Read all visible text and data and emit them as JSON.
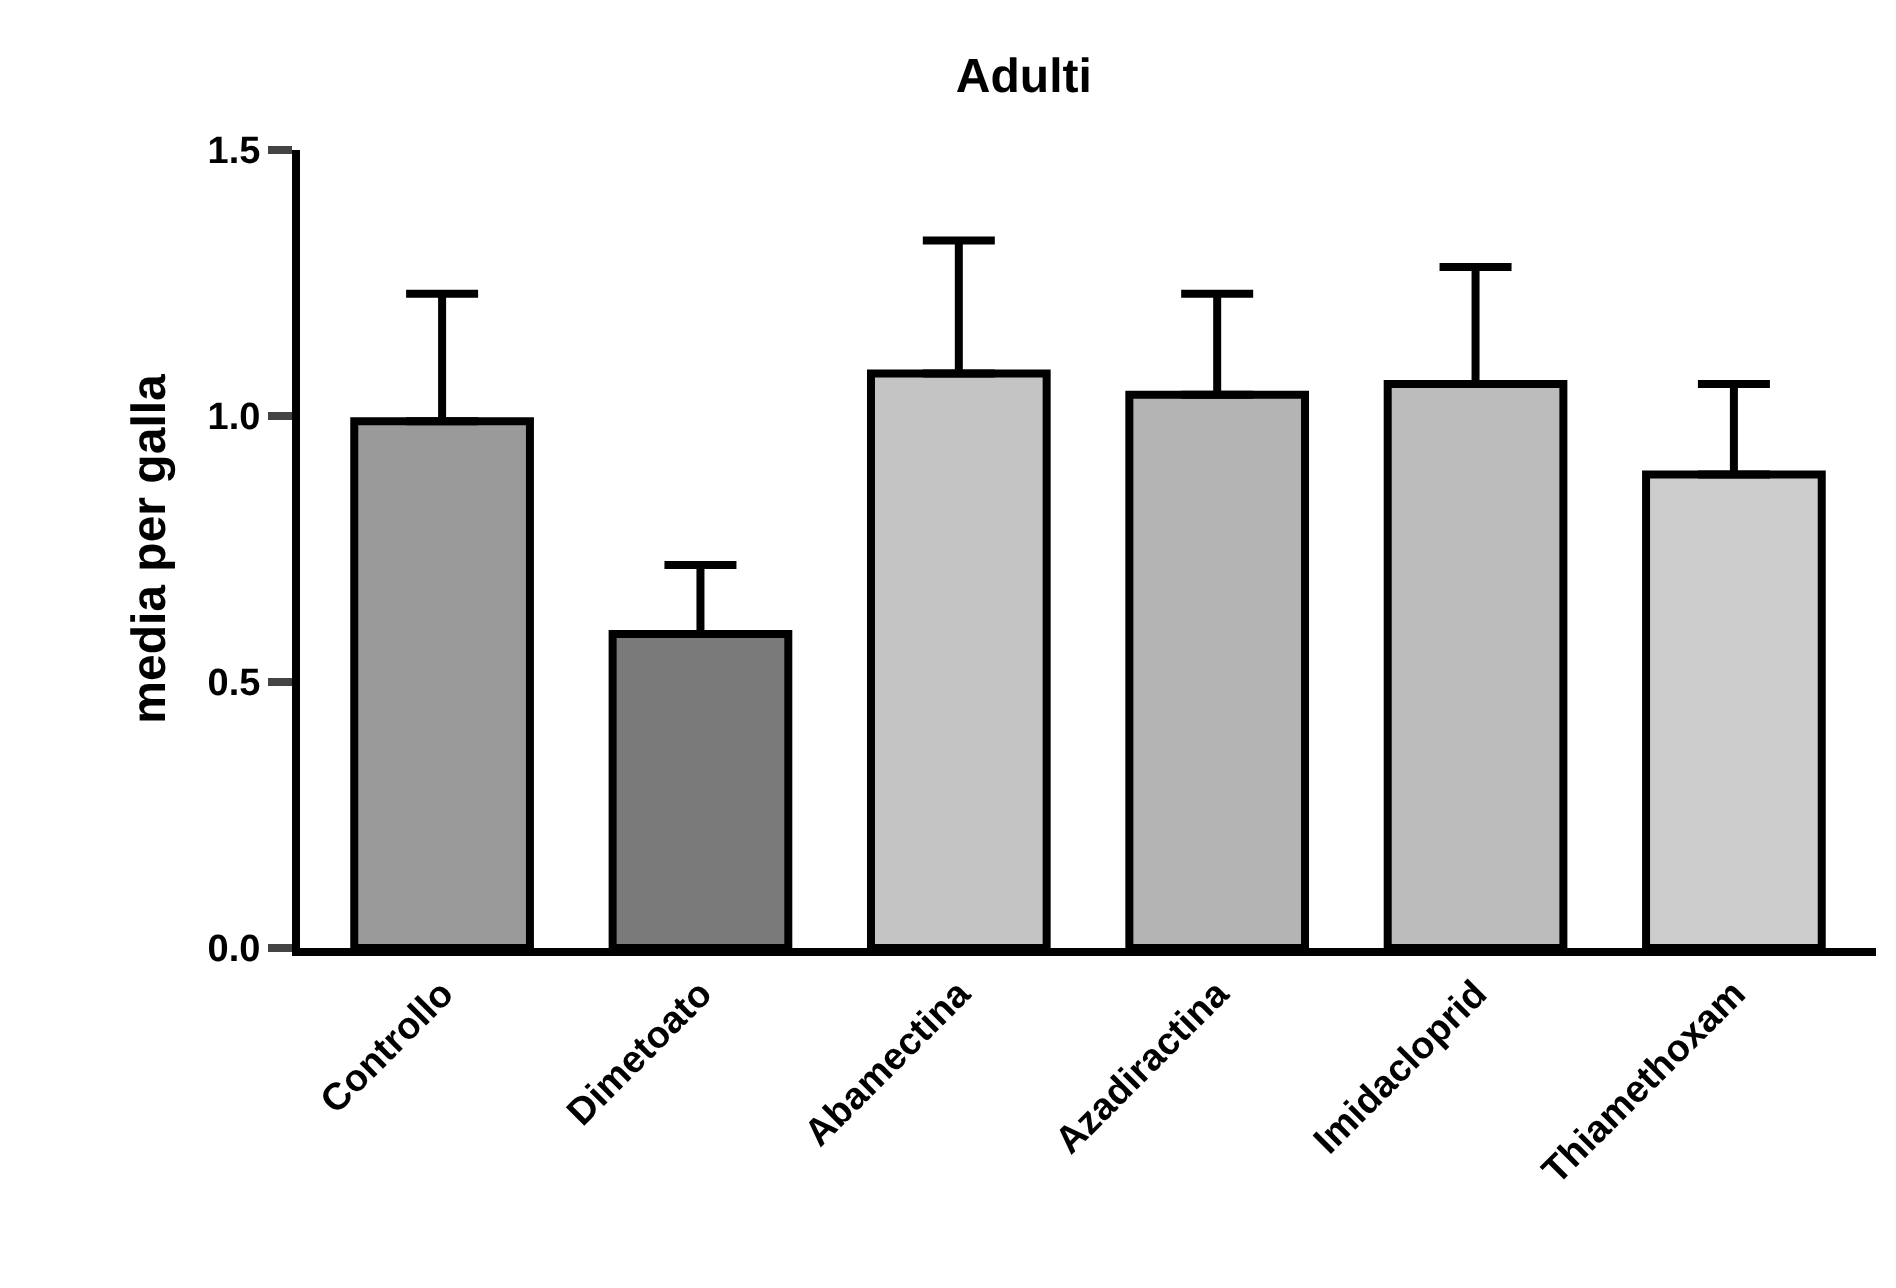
{
  "chart_data": {
    "type": "bar",
    "title": "Adulti",
    "ylabel": "media per galla",
    "categories": [
      "Controllo",
      "Dimetoato",
      "Abamectina",
      "Azadiractina",
      "Imidacloprid",
      "Thiamethoxam"
    ],
    "values": [
      0.99,
      0.59,
      1.08,
      1.04,
      1.06,
      0.89
    ],
    "errors": [
      [
        0.99,
        1.23
      ],
      [
        0.59,
        0.72
      ],
      [
        1.08,
        1.33
      ],
      [
        1.04,
        1.23
      ],
      [
        1.06,
        1.28
      ],
      [
        0.89,
        1.06
      ]
    ],
    "colors": [
      "#9a9a9a",
      "#7a7a7a",
      "#c4c4c4",
      "#b4b4b4",
      "#bcbcbc",
      "#cccccc"
    ],
    "ylim": [
      0,
      1.5
    ],
    "yticks": [
      {
        "value": 0,
        "label": "0.0"
      },
      {
        "value": 0.5,
        "label": "0.5"
      },
      {
        "value": 1.0,
        "label": "1.0"
      },
      {
        "value": 1.5,
        "label": "1.5"
      }
    ]
  }
}
